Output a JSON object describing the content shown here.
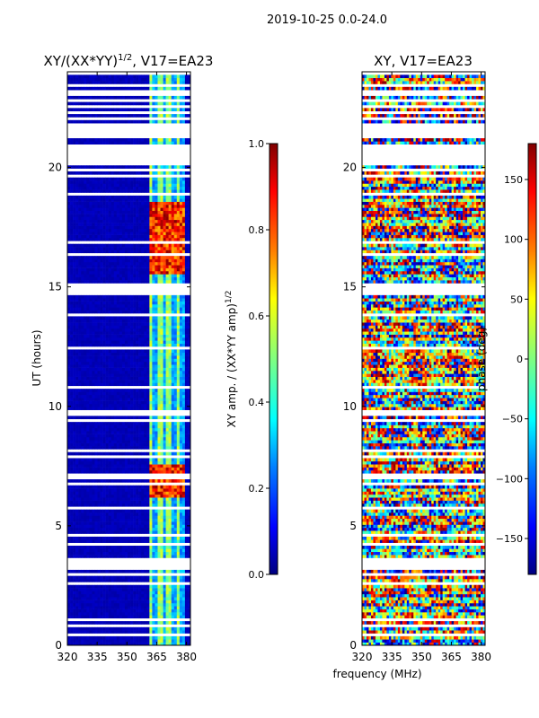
{
  "suptitle": "2019-10-25 0.0-24.0",
  "shared_xlabel": "frequency (MHz)",
  "colors": {
    "jet": [
      "#000080",
      "#0000ff",
      "#0080ff",
      "#00ffff",
      "#80ff80",
      "#ffff00",
      "#ff8000",
      "#ff0000",
      "#800000"
    ],
    "ocean_blue": "#00008f",
    "gap": "#ffffff"
  },
  "chart_data": [
    {
      "type": "heatmap",
      "title": "XY/(XX*YY)",
      "title_superscript": "1/2",
      "title_suffix": ", V17=EA23",
      "xlabel": "",
      "ylabel": "UT (hours)",
      "xlim": [
        320,
        382
      ],
      "ylim": [
        0,
        24
      ],
      "xticks": [
        320,
        335,
        350,
        365,
        380
      ],
      "yticks": [
        0,
        5,
        10,
        15,
        20
      ],
      "colorbar": {
        "label": "XY amp. / (XX*YY amp)",
        "label_superscript": "1/2",
        "range": [
          0.0,
          1.0
        ],
        "ticks": [
          0.0,
          0.2,
          0.4,
          0.6,
          0.8,
          1.0
        ],
        "tick_labels": [
          "0.0",
          "0.2",
          "0.4",
          "0.6",
          "0.8",
          "1.0"
        ]
      },
      "description": "Mostly low amplitude (~0.05) from 320-360 MHz; bright vertical stripes (~0.4-0.6) at 362-378 MHz; high-amplitude patches (~0.8-1.0) near 6.5-7.5 h and 15.5-18.5 h"
    },
    {
      "type": "heatmap",
      "title": "XY, V17=EA23",
      "xlabel": "",
      "ylabel": "",
      "xlim": [
        320,
        382
      ],
      "ylim": [
        0,
        24
      ],
      "xticks": [
        320,
        335,
        350,
        365,
        380
      ],
      "yticks": [
        0,
        5,
        10,
        15,
        20
      ],
      "colorbar": {
        "label": "phase (deg)",
        "range": [
          -180,
          180
        ],
        "ticks": [
          -150,
          -100,
          -50,
          0,
          50,
          100,
          150
        ],
        "tick_labels": [
          "−150",
          "−100",
          "−50",
          "0",
          "50",
          "100",
          "150"
        ]
      },
      "description": "Noisy phase spanning -180 to 180 deg across all frequencies"
    }
  ]
}
